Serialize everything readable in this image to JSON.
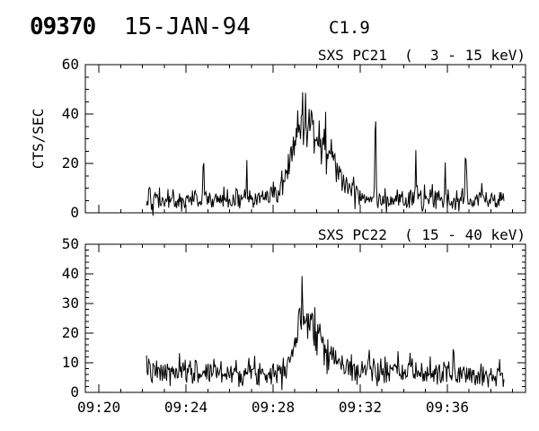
{
  "header": {
    "event_number": "09370",
    "date": "15-JAN-94",
    "flare_class": "C1.9"
  },
  "colors": {
    "background": "#ffffff",
    "line": "#000000",
    "text": "#000000"
  },
  "chart_data": [
    {
      "type": "line",
      "title": "SXS PC21  (  3 - 15 keV)",
      "ylabel": "CTS/SEC",
      "ylim": [
        0,
        60
      ],
      "ytick_values": [
        0,
        20,
        40,
        60
      ],
      "ytick_labels": [
        "0",
        "20",
        "40",
        "60"
      ],
      "ytick_minor_step": 5,
      "xlim_minutes": [
        19.38,
        39.59
      ],
      "xtick_values": [
        20,
        24,
        28,
        32,
        36
      ],
      "xtick_labels": [
        "09:20",
        "09:24",
        "09:28",
        "09:32",
        "09:36"
      ],
      "xtick_minor_step": 1,
      "show_x_labels": false,
      "grid": false,
      "line_color": "#000000",
      "series": {
        "name": "SXS PC21 3-15 keV count rate",
        "t_start": 22.19,
        "t_end": 38.6,
        "n_points": 500,
        "seed": 42,
        "noise_factor": 0.95,
        "envelope": [
          [
            22.19,
            5
          ],
          [
            27.5,
            5.5
          ],
          [
            28.0,
            7
          ],
          [
            28.4,
            11
          ],
          [
            28.7,
            17
          ],
          [
            29.0,
            28
          ],
          [
            29.2,
            36
          ],
          [
            29.45,
            38
          ],
          [
            29.7,
            35
          ],
          [
            29.95,
            36
          ],
          [
            30.2,
            32
          ],
          [
            30.45,
            27
          ],
          [
            30.7,
            22
          ],
          [
            31.0,
            16
          ],
          [
            31.3,
            12
          ],
          [
            31.7,
            9
          ],
          [
            32.2,
            6.5
          ],
          [
            33.0,
            5.5
          ],
          [
            38.6,
            5
          ]
        ],
        "spikes": [
          [
            22.3,
            9
          ],
          [
            24.8,
            18
          ],
          [
            26.8,
            12
          ],
          [
            32.7,
            36
          ],
          [
            34.55,
            15
          ],
          [
            35.9,
            9
          ],
          [
            36.85,
            15
          ],
          [
            37.6,
            8
          ]
        ]
      }
    },
    {
      "type": "line",
      "title": "SXS PC22  ( 15 - 40 keV)",
      "ylabel": "",
      "ylim": [
        0,
        50
      ],
      "ytick_values": [
        0,
        10,
        20,
        30,
        40,
        50
      ],
      "ytick_labels": [
        "0",
        "10",
        "20",
        "30",
        "40",
        "50"
      ],
      "ytick_minor_step": 2,
      "xlim_minutes": [
        19.38,
        39.59
      ],
      "xtick_values": [
        20,
        24,
        28,
        32,
        36
      ],
      "xtick_labels": [
        "09:20",
        "09:24",
        "09:28",
        "09:32",
        "09:36"
      ],
      "xtick_minor_step": 1,
      "show_x_labels": true,
      "grid": false,
      "line_color": "#000000",
      "series": {
        "name": "SXS PC22 15-40 keV count rate",
        "t_start": 22.19,
        "t_end": 38.6,
        "n_points": 500,
        "seed": 7,
        "noise_factor": 0.85,
        "envelope": [
          [
            22.19,
            6.5
          ],
          [
            28.2,
            7
          ],
          [
            28.6,
            10
          ],
          [
            28.9,
            14
          ],
          [
            29.1,
            20
          ],
          [
            29.3,
            25
          ],
          [
            29.5,
            27
          ],
          [
            29.75,
            25
          ],
          [
            30.0,
            22
          ],
          [
            30.3,
            17
          ],
          [
            30.6,
            13
          ],
          [
            31.0,
            10
          ],
          [
            31.5,
            8
          ],
          [
            32.2,
            7
          ],
          [
            38.6,
            6
          ]
        ],
        "spikes": [
          [
            22.3,
            5
          ],
          [
            24.2,
            5
          ],
          [
            25.3,
            4
          ],
          [
            32.4,
            8
          ],
          [
            34.3,
            5
          ],
          [
            36.3,
            6
          ]
        ]
      }
    }
  ]
}
